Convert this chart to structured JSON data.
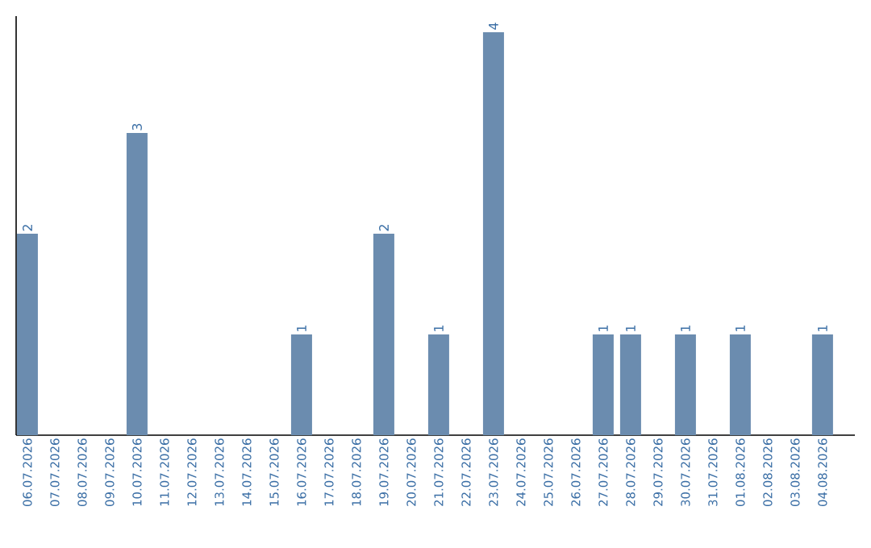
{
  "chart_data": {
    "type": "bar",
    "categories": [
      "06.07.2026",
      "07.07.2026",
      "08.07.2026",
      "09.07.2026",
      "10.07.2026",
      "11.07.2026",
      "12.07.2026",
      "13.07.2026",
      "14.07.2026",
      "15.07.2026",
      "16.07.2026",
      "17.07.2026",
      "18.07.2026",
      "19.07.2026",
      "20.07.2026",
      "21.07.2026",
      "22.07.2026",
      "23.07.2026",
      "24.07.2026",
      "25.07.2026",
      "26.07.2026",
      "27.07.2026",
      "28.07.2026",
      "29.07.2026",
      "30.07.2026",
      "31.07.2026",
      "01.08.2026",
      "02.08.2026",
      "03.08.2026",
      "04.08.2026"
    ],
    "values": [
      2,
      0,
      0,
      0,
      3,
      0,
      0,
      0,
      0,
      0,
      1,
      0,
      0,
      2,
      0,
      1,
      0,
      4,
      0,
      0,
      0,
      1,
      1,
      0,
      1,
      0,
      1,
      0,
      0,
      1
    ],
    "value_labels": [
      "2",
      null,
      null,
      null,
      "3",
      null,
      null,
      null,
      null,
      null,
      "1",
      null,
      null,
      "2",
      null,
      "1",
      null,
      "4",
      null,
      null,
      null,
      "1",
      "1",
      null,
      "1",
      null,
      "1",
      null,
      null,
      "1"
    ],
    "color": "#6b8caf",
    "ylim": [
      0,
      4.16
    ],
    "tick_labels": "x"
  }
}
